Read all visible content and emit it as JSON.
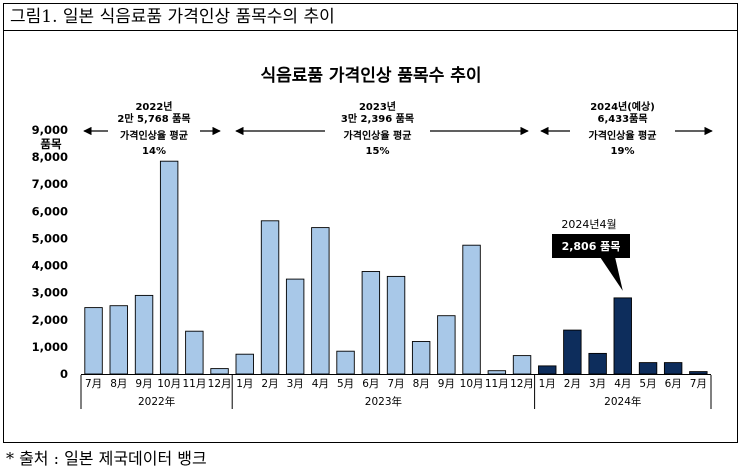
{
  "figure_caption": "그림1. 일본 식음료품 가격인상 품목수의 추이",
  "source_note": "* 출처 : 일본 제국데이터 뱅크",
  "colors": {
    "bar_past": "#a8c8e8",
    "bar_current": "#0d2d5c",
    "callout_bg": "#000000",
    "callout_text": "#ffffff"
  },
  "chart_data": {
    "type": "bar",
    "title": "식음료품 가격인상 품목수 추이",
    "ylabel": "품목",
    "ylim": [
      0,
      9000
    ],
    "yticks": [
      "0",
      "1,000",
      "2,000",
      "3,000",
      "4,000",
      "5,000",
      "6,000",
      "7,000",
      "8,000",
      "9,000"
    ],
    "yticks_values": [
      0,
      1000,
      2000,
      3000,
      4000,
      5000,
      6000,
      7000,
      8000,
      9000
    ],
    "categories": [
      "7月",
      "8月",
      "9月",
      "10月",
      "11月",
      "12月",
      "1月",
      "2月",
      "3月",
      "4月",
      "5月",
      "6月",
      "7月",
      "8月",
      "9月",
      "10月",
      "11月",
      "12月",
      "1月",
      "2月",
      "3月",
      "4月",
      "5月",
      "6月",
      "7月"
    ],
    "values": [
      2450,
      2520,
      2900,
      7850,
      1580,
      200,
      730,
      5650,
      3500,
      5400,
      840,
      3780,
      3600,
      1200,
      2150,
      4750,
      120,
      680,
      300,
      1620,
      760,
      2806,
      420,
      420,
      90
    ],
    "series_group": [
      "2022",
      "2022",
      "2022",
      "2022",
      "2022",
      "2022",
      "2023",
      "2023",
      "2023",
      "2023",
      "2023",
      "2023",
      "2023",
      "2023",
      "2023",
      "2023",
      "2023",
      "2023",
      "2024",
      "2024",
      "2024",
      "2024",
      "2024",
      "2024",
      "2024"
    ],
    "year_labels": [
      {
        "label": "2022年",
        "start": 0,
        "end": 5
      },
      {
        "label": "2023年",
        "start": 6,
        "end": 17
      },
      {
        "label": "2024年",
        "start": 18,
        "end": 24
      }
    ],
    "period_notes": [
      {
        "lines": [
          "2022년",
          "2만 5,768 품목",
          "가격인상율 평균",
          "14%"
        ],
        "start": 0,
        "end": 5
      },
      {
        "lines": [
          "2023년",
          "3만 2,396 품목",
          "가격인상율 평균",
          "15%"
        ],
        "start": 6,
        "end": 17
      },
      {
        "lines": [
          "2024년(예상)",
          "6,433품목",
          "가격인상율 평균",
          "19%"
        ],
        "start": 18,
        "end": 24
      }
    ],
    "callout": {
      "title": "2024년4월",
      "label": "2,806 품목",
      "index": 21
    }
  }
}
